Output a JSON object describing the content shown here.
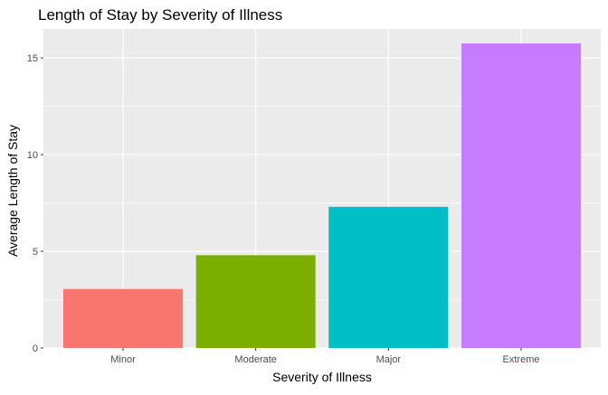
{
  "chart_data": {
    "type": "bar",
    "title": "Length of Stay by Severity of Illness",
    "xlabel": "Severity of Illness",
    "ylabel": "Average Length of Stay",
    "categories": [
      "Minor",
      "Moderate",
      "Major",
      "Extreme"
    ],
    "values": [
      3.05,
      4.8,
      7.3,
      15.75
    ],
    "colors": [
      "#F8766D",
      "#7CAE00",
      "#00BFC4",
      "#C77CFF"
    ],
    "ylim": [
      0,
      16.5
    ],
    "yticks": [
      0,
      5,
      10,
      15
    ],
    "grid": true,
    "legend": "none",
    "panel_background": "#EBEBEB",
    "grid_color": "#FFFFFF"
  }
}
